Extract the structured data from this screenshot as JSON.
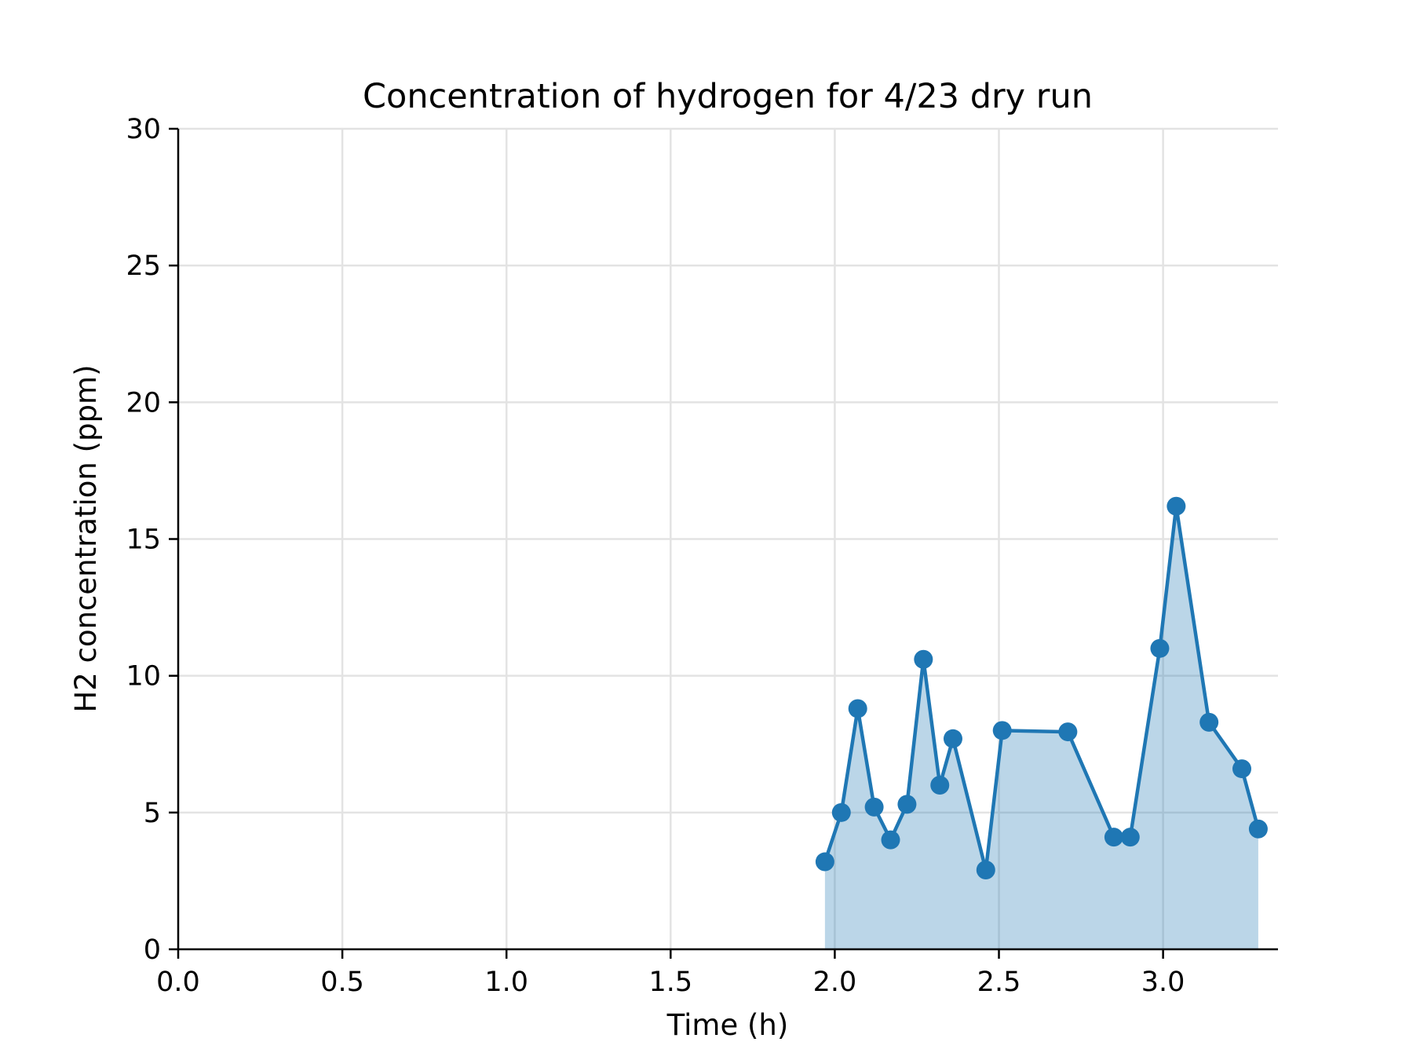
{
  "chart_data": {
    "type": "area",
    "title": "Concentration of hydrogen for 4/23 dry run",
    "xlabel": "Time (h)",
    "ylabel": "H2 concentration (ppm)",
    "xlim": [
      0.0,
      3.35
    ],
    "ylim": [
      0,
      30
    ],
    "xticks": [
      0.0,
      0.5,
      1.0,
      1.5,
      2.0,
      2.5,
      3.0
    ],
    "xtick_labels": [
      "0.0",
      "0.5",
      "1.0",
      "1.5",
      "2.0",
      "2.5",
      "3.0"
    ],
    "yticks": [
      0,
      5,
      10,
      15,
      20,
      25,
      30
    ],
    "ytick_labels": [
      "0",
      "5",
      "10",
      "15",
      "20",
      "25",
      "30"
    ],
    "grid": true,
    "colors": {
      "line": "#1f77b4",
      "fill": "#1f77b4",
      "fill_opacity": 0.3
    },
    "series": [
      {
        "x": [
          1.97,
          2.02,
          2.07,
          2.12,
          2.17,
          2.22,
          2.27,
          2.32,
          2.36,
          2.46,
          2.51,
          2.71,
          2.85,
          2.9,
          2.99,
          3.04,
          3.14,
          3.24,
          3.29
        ],
        "y": [
          3.2,
          5.0,
          8.8,
          5.2,
          4.0,
          5.3,
          10.6,
          6.0,
          7.7,
          2.9,
          8.0,
          7.95,
          4.1,
          4.1,
          11.0,
          16.2,
          8.3,
          6.6,
          4.4
        ]
      }
    ]
  }
}
